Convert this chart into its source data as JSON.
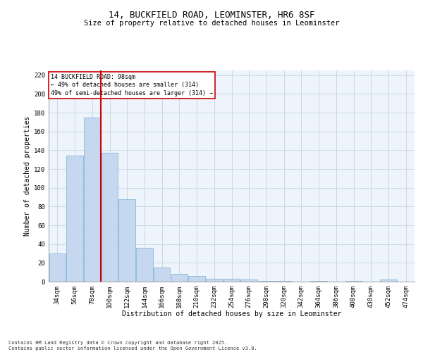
{
  "title1": "14, BUCKFIELD ROAD, LEOMINSTER, HR6 8SF",
  "title2": "Size of property relative to detached houses in Leominster",
  "xlabel": "Distribution of detached houses by size in Leominster",
  "ylabel": "Number of detached properties",
  "categories": [
    "34sqm",
    "56sqm",
    "78sqm",
    "100sqm",
    "122sqm",
    "144sqm",
    "166sqm",
    "188sqm",
    "210sqm",
    "232sqm",
    "254sqm",
    "276sqm",
    "298sqm",
    "320sqm",
    "342sqm",
    "364sqm",
    "386sqm",
    "408sqm",
    "430sqm",
    "452sqm",
    "474sqm"
  ],
  "values": [
    30,
    134,
    175,
    137,
    88,
    36,
    15,
    8,
    6,
    3,
    3,
    2,
    1,
    1,
    0,
    1,
    0,
    1,
    0,
    2,
    0
  ],
  "bar_color": "#c5d8f0",
  "bar_edge_color": "#7aadd4",
  "grid_color": "#c8d8e8",
  "background_color": "#eef4fb",
  "vline_x": 2.5,
  "vline_color": "#cc0000",
  "annotation_text": "14 BUCKFIELD ROAD: 98sqm\n← 49% of detached houses are smaller (314)\n49% of semi-detached houses are larger (314) →",
  "annotation_box_color": "#cc0000",
  "ylim": [
    0,
    225
  ],
  "yticks": [
    0,
    20,
    40,
    60,
    80,
    100,
    120,
    140,
    160,
    180,
    200,
    220
  ],
  "footer": "Contains HM Land Registry data © Crown copyright and database right 2025.\nContains public sector information licensed under the Open Government Licence v3.0.",
  "title1_fontsize": 9,
  "title2_fontsize": 7.5,
  "xlabel_fontsize": 7,
  "ylabel_fontsize": 7,
  "tick_fontsize": 6.5,
  "annotation_fontsize": 6,
  "footer_fontsize": 5
}
